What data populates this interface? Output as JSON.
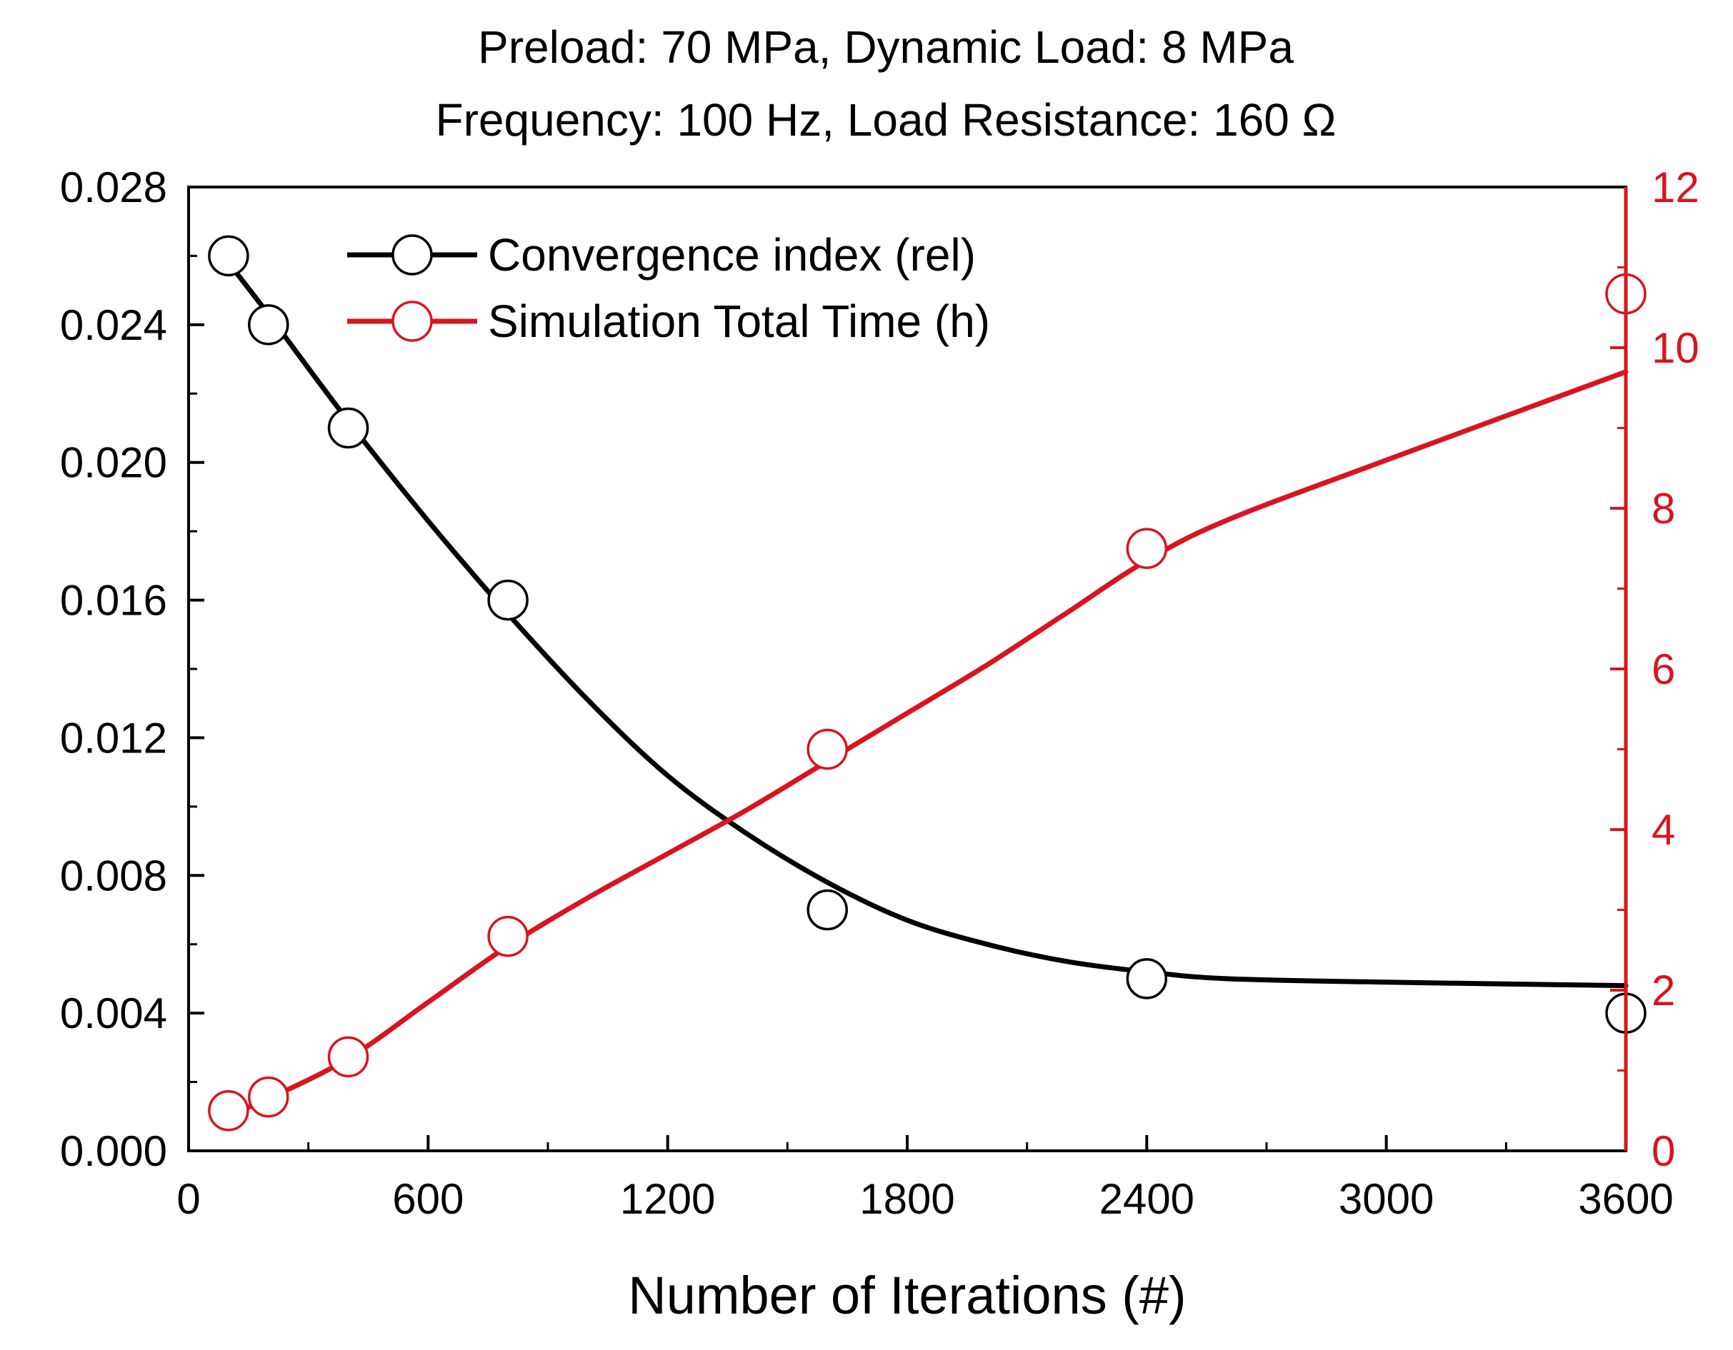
{
  "chart_data": {
    "type": "line",
    "title_lines": [
      "Preload: 70 MPa, Dynamic Load: 8 MPa",
      "Frequency: 100 Hz, Load Resistance: 160 Ω"
    ],
    "xlabel": "Number of Iterations (#)",
    "xlim": [
      0,
      3600
    ],
    "xticks": [
      0,
      600,
      1200,
      1800,
      2400,
      3000,
      3600
    ],
    "xtick_labels": [
      "0",
      "600",
      "1200",
      "1800",
      "2400",
      "3000",
      "3600"
    ],
    "left_axis": {
      "ylim": [
        0,
        0.028
      ],
      "ticks": [
        0,
        0.004,
        0.008,
        0.012,
        0.016,
        0.02,
        0.024,
        0.028
      ],
      "tick_labels": [
        "0.000",
        "0.004",
        "0.008",
        "0.012",
        "0.016",
        "0.020",
        "0.024",
        "0.028"
      ],
      "color": "#000000"
    },
    "right_axis": {
      "ylim": [
        0,
        12
      ],
      "ticks": [
        0,
        2,
        4,
        6,
        8,
        10,
        12
      ],
      "tick_labels": [
        "0",
        "2",
        "4",
        "6",
        "8",
        "10",
        "12"
      ],
      "color": "#d9141e"
    },
    "legend_position": "top-left",
    "grid": false,
    "series": [
      {
        "name": "Convergence index (rel)",
        "axis": "left",
        "color": "#000000",
        "x": [
          100,
          200,
          400,
          800,
          1600,
          2400,
          3600
        ],
        "values": [
          0.026,
          0.024,
          0.021,
          0.016,
          0.007,
          0.005,
          0.004
        ],
        "fit_curve": [
          [
            100,
            0.0258
          ],
          [
            200,
            0.0243
          ],
          [
            400,
            0.0212
          ],
          [
            600,
            0.0183
          ],
          [
            800,
            0.0156
          ],
          [
            1000,
            0.0131
          ],
          [
            1200,
            0.0109
          ],
          [
            1400,
            0.0092
          ],
          [
            1600,
            0.0078
          ],
          [
            1800,
            0.0067
          ],
          [
            2000,
            0.006
          ],
          [
            2200,
            0.0055
          ],
          [
            2400,
            0.0052
          ],
          [
            2600,
            0.005
          ],
          [
            3000,
            0.0049
          ],
          [
            3600,
            0.0048
          ]
        ]
      },
      {
        "name": "Simulation Total Time (h)",
        "axis": "right",
        "color": "#d9141e",
        "x": [
          100,
          200,
          400,
          800,
          1600,
          2400,
          3600
        ],
        "values": [
          0.5,
          0.67,
          1.17,
          2.67,
          5.0,
          7.5,
          10.67
        ],
        "fit_curve": [
          [
            100,
            0.45
          ],
          [
            200,
            0.65
          ],
          [
            400,
            1.15
          ],
          [
            600,
            1.85
          ],
          [
            800,
            2.55
          ],
          [
            1000,
            3.15
          ],
          [
            1200,
            3.7
          ],
          [
            1400,
            4.25
          ],
          [
            1600,
            4.85
          ],
          [
            1800,
            5.45
          ],
          [
            2000,
            6.05
          ],
          [
            2200,
            6.7
          ],
          [
            2400,
            7.35
          ],
          [
            2600,
            7.85
          ],
          [
            3000,
            8.6
          ],
          [
            3600,
            9.7
          ]
        ]
      }
    ]
  }
}
